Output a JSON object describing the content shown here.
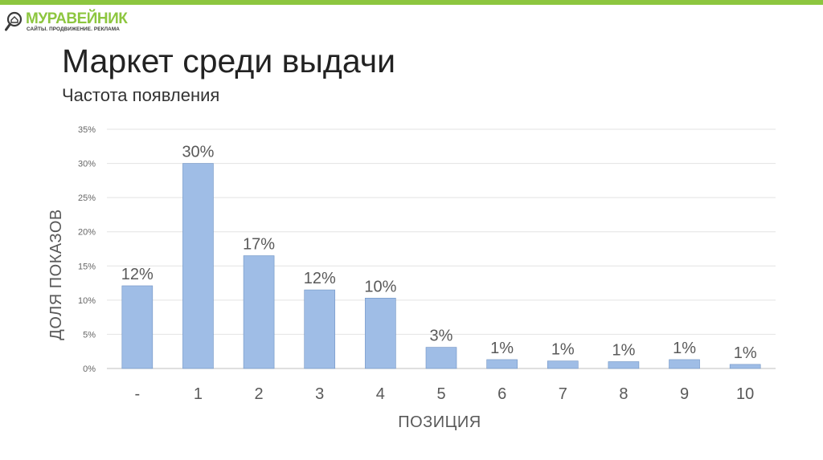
{
  "brand": {
    "name": "МУРАВЕЙНИК",
    "tagline": "САЙТЫ. ПРОДВИЖЕНИЕ. РЕКЛАМА",
    "accent_color": "#8dc63f",
    "logo_icon": "magnifier-house-icon"
  },
  "slide": {
    "title": "Маркет среди выдачи",
    "subtitle": "Частота появления"
  },
  "chart_data": {
    "type": "bar",
    "categories": [
      "-",
      "1",
      "2",
      "3",
      "4",
      "5",
      "6",
      "7",
      "8",
      "9",
      "10"
    ],
    "values": [
      12.1,
      30.0,
      16.5,
      11.5,
      10.3,
      3.1,
      1.3,
      1.1,
      1.0,
      1.3,
      0.6
    ],
    "data_labels": [
      "12%",
      "30%",
      "17%",
      "12%",
      "10%",
      "3%",
      "1%",
      "1%",
      "1%",
      "1%",
      "1%"
    ],
    "y_ticks": [
      "0%",
      "5%",
      "10%",
      "15%",
      "20%",
      "25%",
      "30%",
      "35%"
    ],
    "xlabel": "ПОЗИЦИЯ",
    "ylabel": "ДОЛЯ ПОКАЗОВ",
    "ylim": [
      0,
      35
    ],
    "grid": true,
    "bar_color": "#9fbde6",
    "bar_edge_color": "#6f93c4"
  }
}
